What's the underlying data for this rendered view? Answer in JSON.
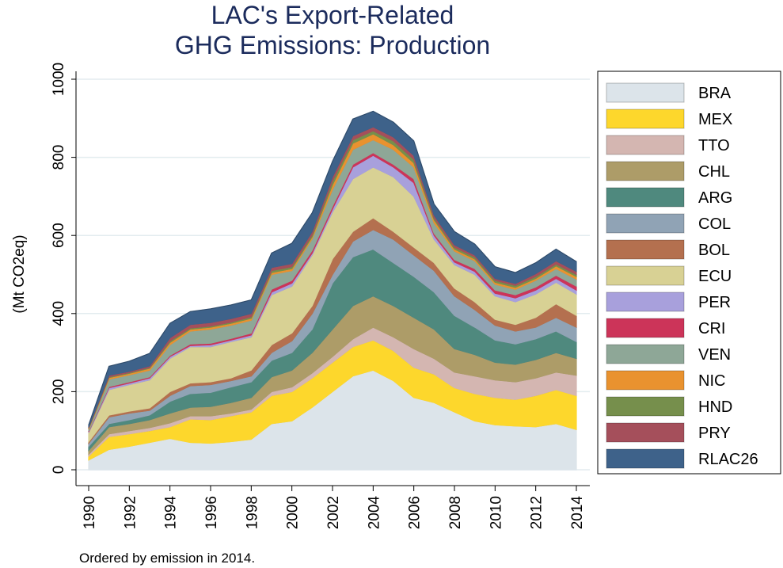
{
  "chart_data": {
    "type": "area",
    "stacked": true,
    "title": [
      "LAC's Export-Related",
      "GHG Emissions: Production"
    ],
    "ylabel": "(Mt CO2eq)",
    "note": "Ordered by emission in 2014.",
    "x": [
      1990,
      1991,
      1992,
      1993,
      1994,
      1995,
      1996,
      1997,
      1998,
      1999,
      2000,
      2001,
      2002,
      2003,
      2004,
      2005,
      2006,
      2007,
      2008,
      2009,
      2010,
      2011,
      2012,
      2013,
      2014
    ],
    "xlim": [
      1990,
      2014
    ],
    "xticks": [
      1990,
      1992,
      1994,
      1996,
      1998,
      2000,
      2002,
      2004,
      2006,
      2008,
      2010,
      2012,
      2014
    ],
    "ylim": [
      0,
      1000
    ],
    "yticks": [
      0,
      200,
      400,
      600,
      800,
      1000
    ],
    "grid": true,
    "legend": "right",
    "series": [
      {
        "name": "BRA",
        "color": "#dce4ea",
        "values": [
          25,
          52,
          60,
          70,
          80,
          70,
          68,
          72,
          78,
          118,
          125,
          160,
          200,
          240,
          255,
          228,
          185,
          172,
          148,
          125,
          115,
          112,
          110,
          118,
          103
        ]
      },
      {
        "name": "MEX",
        "color": "#fdd72c",
        "values": [
          10,
          33,
          32,
          30,
          30,
          60,
          60,
          66,
          70,
          72,
          75,
          75,
          75,
          75,
          77,
          77,
          77,
          73,
          62,
          70,
          70,
          68,
          80,
          87,
          87
        ]
      },
      {
        "name": "TTO",
        "color": "#d4b6b1",
        "values": [
          5,
          7,
          8,
          8,
          10,
          8,
          10,
          7,
          7,
          10,
          12,
          13,
          15,
          20,
          33,
          35,
          48,
          40,
          40,
          45,
          45,
          45,
          45,
          45,
          52
        ]
      },
      {
        "name": "CHL",
        "color": "#ad9c68",
        "values": [
          10,
          18,
          18,
          20,
          25,
          22,
          24,
          27,
          30,
          38,
          43,
          52,
          70,
          85,
          80,
          80,
          80,
          75,
          60,
          55,
          45,
          45,
          47,
          50,
          43
        ]
      },
      {
        "name": "ARG",
        "color": "#4f897e",
        "values": [
          10,
          8,
          10,
          12,
          30,
          35,
          36,
          40,
          40,
          42,
          45,
          60,
          118,
          125,
          120,
          110,
          105,
          95,
          85,
          70,
          57,
          52,
          53,
          55,
          43
        ]
      },
      {
        "name": "COL",
        "color": "#90a3b5",
        "values": [
          8,
          17,
          17,
          12,
          15,
          20,
          20,
          16,
          15,
          20,
          30,
          40,
          22,
          40,
          50,
          60,
          55,
          55,
          50,
          45,
          38,
          33,
          30,
          35,
          37
        ]
      },
      {
        "name": "BOL",
        "color": "#b4704f",
        "values": [
          4,
          5,
          5,
          6,
          10,
          7,
          7,
          7,
          15,
          20,
          20,
          20,
          40,
          25,
          30,
          20,
          20,
          20,
          20,
          20,
          15,
          17,
          25,
          35,
          30
        ]
      },
      {
        "name": "ECU",
        "color": "#d8d194",
        "values": [
          23,
          65,
          68,
          72,
          85,
          93,
          90,
          93,
          85,
          128,
          120,
          130,
          120,
          135,
          130,
          140,
          130,
          60,
          60,
          70,
          60,
          58,
          60,
          55,
          55
        ]
      },
      {
        "name": "PER",
        "color": "#a8a0dc",
        "values": [
          2,
          5,
          4,
          5,
          5,
          3,
          5,
          4,
          5,
          7,
          8,
          5,
          8,
          30,
          30,
          25,
          35,
          10,
          7,
          8,
          7,
          10,
          10,
          10,
          10
        ]
      },
      {
        "name": "CRI",
        "color": "#cc3459",
        "values": [
          2,
          3,
          3,
          3,
          3,
          4,
          4,
          4,
          5,
          7,
          7,
          7,
          7,
          7,
          7,
          7,
          10,
          5,
          6,
          7,
          8,
          8,
          8,
          8,
          10
        ]
      },
      {
        "name": "VEN",
        "color": "#8ea797",
        "values": [
          5,
          19,
          18,
          17,
          27,
          33,
          36,
          34,
          33,
          38,
          25,
          30,
          43,
          38,
          33,
          38,
          30,
          27,
          22,
          20,
          15,
          14,
          17,
          17,
          18
        ]
      },
      {
        "name": "NIC",
        "color": "#e9922f",
        "values": [
          2,
          4,
          4,
          5,
          6,
          5,
          5,
          5,
          5,
          5,
          5,
          5,
          12,
          16,
          15,
          12,
          11,
          8,
          5,
          5,
          5,
          5,
          5,
          7,
          7
        ]
      },
      {
        "name": "HND",
        "color": "#768f4c",
        "values": [
          1,
          2,
          2,
          2,
          4,
          3,
          3,
          3,
          4,
          5,
          5,
          5,
          10,
          9,
          8,
          10,
          9,
          5,
          5,
          5,
          5,
          5,
          5,
          5,
          5
        ]
      },
      {
        "name": "PRY",
        "color": "#a54f5b",
        "values": [
          2,
          4,
          3,
          4,
          8,
          9,
          9,
          9,
          8,
          8,
          8,
          8,
          10,
          10,
          10,
          10,
          10,
          7,
          6,
          5,
          5,
          5,
          7,
          8,
          8
        ]
      },
      {
        "name": "RLAC26",
        "color": "#3e628a",
        "values": [
          6,
          23,
          26,
          32,
          37,
          33,
          35,
          35,
          35,
          37,
          52,
          48,
          40,
          43,
          40,
          38,
          37,
          28,
          34,
          28,
          30,
          28,
          28,
          30,
          25
        ]
      }
    ]
  }
}
